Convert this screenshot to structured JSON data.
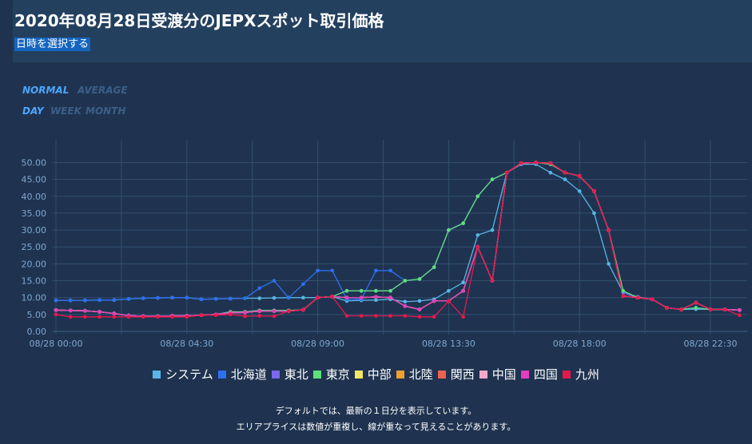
{
  "header": {
    "title": "2020年08月28日受渡分のJEPXスポット取引価格",
    "date_button": "日時を選択する"
  },
  "modes": {
    "normal": "NORMAL",
    "average": "AVERAGE",
    "day": "DAY",
    "week": "WEEK",
    "month": "MONTH"
  },
  "footer": {
    "line1": "デフォルトでは、最新の１日分を表示しています。",
    "line2": "エリアプライスは数値が重複し、線が重なって見えることがあります。"
  },
  "chart_data": {
    "type": "line",
    "title": "",
    "xlabel": "",
    "ylabel": "",
    "ylim": [
      0,
      52
    ],
    "grid": true,
    "legend_position": "bottom",
    "x_tick_labels": [
      "08/28 00:00",
      "08/28 04:30",
      "08/28 09:00",
      "08/28 13:30",
      "08/28 18:00",
      "08/28 22:30"
    ],
    "x_tick_index": [
      0,
      9,
      18,
      27,
      36,
      45
    ],
    "y_ticks": [
      "0.00",
      "5.00",
      "10.00",
      "15.00",
      "20.00",
      "25.00",
      "30.00",
      "35.00",
      "40.00",
      "45.00",
      "50.00"
    ],
    "series": [
      {
        "name": "システム",
        "color": "#58b6e6",
        "values": [
          9.2,
          9.2,
          9.2,
          9.3,
          9.3,
          9.6,
          9.8,
          9.9,
          10.0,
          10.0,
          9.5,
          9.6,
          9.7,
          9.8,
          9.8,
          9.9,
          10.0,
          10.0,
          10.0,
          10.3,
          9.0,
          9.2,
          9.3,
          9.5,
          8.8,
          9.0,
          9.5,
          12.0,
          14.5,
          28.5,
          30.0,
          47.0,
          49.5,
          49.5,
          47.0,
          45.0,
          41.5,
          35.0,
          20.0,
          11.5,
          10.2,
          9.5,
          7.0,
          6.5,
          6.6,
          6.5,
          6.5,
          6.3
        ]
      },
      {
        "name": "北海道",
        "color": "#2d6ff0",
        "values": [
          9.2,
          9.2,
          9.2,
          9.3,
          9.3,
          9.6,
          9.8,
          9.9,
          10.0,
          10.0,
          9.5,
          9.6,
          9.7,
          9.8,
          12.8,
          15.0,
          9.9,
          14.0,
          18.0,
          18.0,
          9.5,
          9.5,
          18.0,
          18.0,
          15.0,
          15.5,
          19.0,
          30.0,
          32.0,
          40.0,
          45.0,
          47.0,
          49.8,
          50.0,
          49.5,
          47.0,
          46.0,
          41.5,
          30.0,
          11.5,
          10.0,
          9.5,
          7.0,
          6.5,
          7.0,
          6.5,
          6.5,
          6.3
        ]
      },
      {
        "name": "東北",
        "color": "#7b68ee",
        "values": [
          6.3,
          6.2,
          6.1,
          5.8,
          5.3,
          4.7,
          4.5,
          4.5,
          4.6,
          4.6,
          4.8,
          5.0,
          5.8,
          5.8,
          6.2,
          6.2,
          6.2,
          6.4,
          10.0,
          10.3,
          12.0,
          12.0,
          12.0,
          12.0,
          15.0,
          15.5,
          19.0,
          30.0,
          32.0,
          40.0,
          45.0,
          47.0,
          49.8,
          50.0,
          49.5,
          47.0,
          46.0,
          41.5,
          30.0,
          11.5,
          10.0,
          9.5,
          7.0,
          6.5,
          7.0,
          6.5,
          6.5,
          6.3
        ]
      },
      {
        "name": "東京",
        "color": "#5ee07a",
        "values": [
          6.3,
          6.2,
          6.1,
          5.8,
          5.3,
          4.7,
          4.5,
          4.5,
          4.6,
          4.6,
          4.8,
          5.0,
          5.8,
          5.8,
          6.2,
          6.2,
          6.2,
          6.4,
          10.0,
          10.3,
          12.0,
          12.0,
          12.0,
          12.0,
          15.0,
          15.5,
          19.0,
          30.0,
          32.0,
          40.0,
          45.0,
          47.0,
          49.8,
          50.0,
          49.5,
          47.0,
          46.0,
          41.5,
          30.0,
          12.0,
          10.0,
          9.5,
          7.0,
          6.5,
          7.0,
          6.5,
          6.5,
          6.3
        ]
      },
      {
        "name": "中部",
        "color": "#f5e663",
        "values": [
          6.3,
          6.2,
          6.1,
          5.8,
          5.3,
          4.7,
          4.5,
          4.5,
          4.6,
          4.6,
          4.8,
          5.0,
          5.5,
          5.6,
          6.0,
          6.0,
          6.0,
          6.4,
          10.0,
          10.3,
          10.0,
          10.0,
          10.2,
          10.0,
          7.5,
          6.5,
          9.0,
          9.0,
          12.0,
          25.0,
          15.0,
          47.0,
          49.8,
          50.0,
          49.8,
          47.0,
          46.0,
          41.5,
          30.0,
          10.5,
          10.0,
          9.5,
          7.0,
          6.5,
          8.5,
          6.5,
          6.5,
          6.3
        ]
      },
      {
        "name": "北陸",
        "color": "#f0a030",
        "values": [
          6.3,
          6.2,
          6.1,
          5.8,
          5.3,
          4.7,
          4.5,
          4.5,
          4.6,
          4.6,
          4.8,
          5.0,
          5.5,
          5.6,
          6.0,
          6.0,
          6.0,
          6.4,
          10.0,
          10.3,
          10.0,
          10.0,
          10.2,
          10.0,
          7.5,
          6.5,
          9.0,
          9.0,
          12.0,
          25.0,
          15.0,
          47.0,
          49.8,
          50.0,
          49.8,
          47.0,
          46.0,
          41.5,
          30.0,
          10.5,
          10.0,
          9.5,
          7.0,
          6.5,
          8.5,
          6.5,
          6.5,
          6.3
        ]
      },
      {
        "name": "関西",
        "color": "#f06050",
        "values": [
          6.3,
          6.2,
          6.1,
          5.8,
          5.3,
          4.7,
          4.5,
          4.5,
          4.6,
          4.6,
          4.8,
          5.0,
          5.5,
          5.6,
          6.0,
          6.0,
          6.0,
          6.4,
          10.0,
          10.3,
          10.0,
          10.0,
          10.2,
          10.0,
          7.5,
          6.5,
          9.0,
          9.0,
          12.0,
          25.0,
          15.0,
          47.0,
          49.8,
          50.0,
          49.8,
          47.0,
          46.0,
          41.5,
          30.0,
          10.5,
          10.0,
          9.5,
          7.0,
          6.5,
          8.5,
          6.5,
          6.5,
          6.3
        ]
      },
      {
        "name": "中国",
        "color": "#f7a8c8",
        "values": [
          6.3,
          6.2,
          6.1,
          5.8,
          5.3,
          4.7,
          4.5,
          4.5,
          4.6,
          4.6,
          4.8,
          5.0,
          5.5,
          5.6,
          6.0,
          6.0,
          6.0,
          6.4,
          10.0,
          10.3,
          10.0,
          10.0,
          10.2,
          10.0,
          7.5,
          6.5,
          9.0,
          9.0,
          12.0,
          25.0,
          15.0,
          47.0,
          49.8,
          50.0,
          49.8,
          47.0,
          46.0,
          41.5,
          30.0,
          10.5,
          10.0,
          9.5,
          7.0,
          6.5,
          8.5,
          6.5,
          6.5,
          6.3
        ]
      },
      {
        "name": "四国",
        "color": "#e040c0",
        "values": [
          6.3,
          6.2,
          6.1,
          5.8,
          5.3,
          4.7,
          4.5,
          4.5,
          4.6,
          4.6,
          4.8,
          5.0,
          5.5,
          5.6,
          6.0,
          6.0,
          6.0,
          6.4,
          10.0,
          10.3,
          10.0,
          10.0,
          10.2,
          10.0,
          7.5,
          6.5,
          9.0,
          9.0,
          12.0,
          25.0,
          15.0,
          47.0,
          49.8,
          50.0,
          49.8,
          47.0,
          46.0,
          41.5,
          30.0,
          10.5,
          10.0,
          9.5,
          7.0,
          6.5,
          8.5,
          6.5,
          6.5,
          6.3
        ]
      },
      {
        "name": "九州",
        "color": "#e8184a",
        "values": [
          5.0,
          4.3,
          4.3,
          4.3,
          4.3,
          4.3,
          4.3,
          4.3,
          4.3,
          4.3,
          4.8,
          4.8,
          5.0,
          4.5,
          4.6,
          4.5,
          6.0,
          6.4,
          10.0,
          10.3,
          4.6,
          4.6,
          4.6,
          4.6,
          4.6,
          4.3,
          4.3,
          9.0,
          4.3,
          25.0,
          15.0,
          47.0,
          49.8,
          50.0,
          49.8,
          47.0,
          46.0,
          41.5,
          30.0,
          10.5,
          10.0,
          9.5,
          7.0,
          6.5,
          8.5,
          6.5,
          6.5,
          4.8
        ]
      }
    ]
  }
}
